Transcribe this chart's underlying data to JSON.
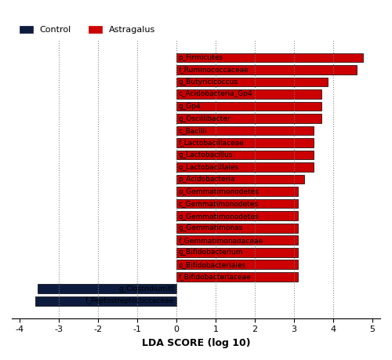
{
  "categories": [
    "f_Peptostreptococcaceae",
    "g_ClostridiumXI",
    "f_Bifidobacteriaceae",
    "o_Bifidobacteriales",
    "g_Bifidobacterium",
    "f_Gemmatimonadaceae",
    "g_Gemmatimonas",
    "o_Gemmatimonodetes",
    "c_Gemmatimonodetes",
    "p_Gemmatimonodetes",
    "p_Acidobacteria",
    "o_Lactobacillales",
    "g_Lactobacillus",
    "f_Lactobacillaceae",
    "c_Bacilli",
    "g_Oscillibacter",
    "g_Gp4",
    "c_Acidobacteria_Gp4",
    "g_Butyricicoccus",
    "f_Ruminococcaceae",
    "p_Firmicutes"
  ],
  "values": [
    -3.6,
    -3.55,
    3.1,
    3.1,
    3.1,
    3.1,
    3.1,
    3.1,
    3.1,
    3.1,
    3.25,
    3.5,
    3.5,
    3.5,
    3.5,
    3.7,
    3.7,
    3.7,
    3.85,
    4.6,
    4.75
  ],
  "colors": [
    "#0d1b3e",
    "#0d1b3e",
    "#cc0000",
    "#cc0000",
    "#cc0000",
    "#cc0000",
    "#cc0000",
    "#cc0000",
    "#cc0000",
    "#cc0000",
    "#cc0000",
    "#cc0000",
    "#cc0000",
    "#cc0000",
    "#cc0000",
    "#cc0000",
    "#cc0000",
    "#cc0000",
    "#cc0000",
    "#cc0000",
    "#cc0000"
  ],
  "xlabel": "LDA SCORE (log 10)",
  "xlim": [
    -4.2,
    5.2
  ],
  "xticks": [
    -4,
    -3,
    -2,
    -1,
    0,
    1,
    2,
    3,
    4,
    5
  ],
  "xticklabels": [
    "-4",
    "-3",
    "-2",
    "-1",
    "0",
    "1",
    "2",
    "3",
    "4",
    "5"
  ],
  "vlines": [
    -3,
    -2,
    -1,
    0,
    1,
    2,
    3,
    4
  ],
  "legend_labels": [
    "Control",
    "Astragalus"
  ],
  "legend_colors": [
    "#0d1b3e",
    "#cc0000"
  ],
  "bar_height": 0.75,
  "background_color": "#ffffff",
  "edge_color": "#000000"
}
